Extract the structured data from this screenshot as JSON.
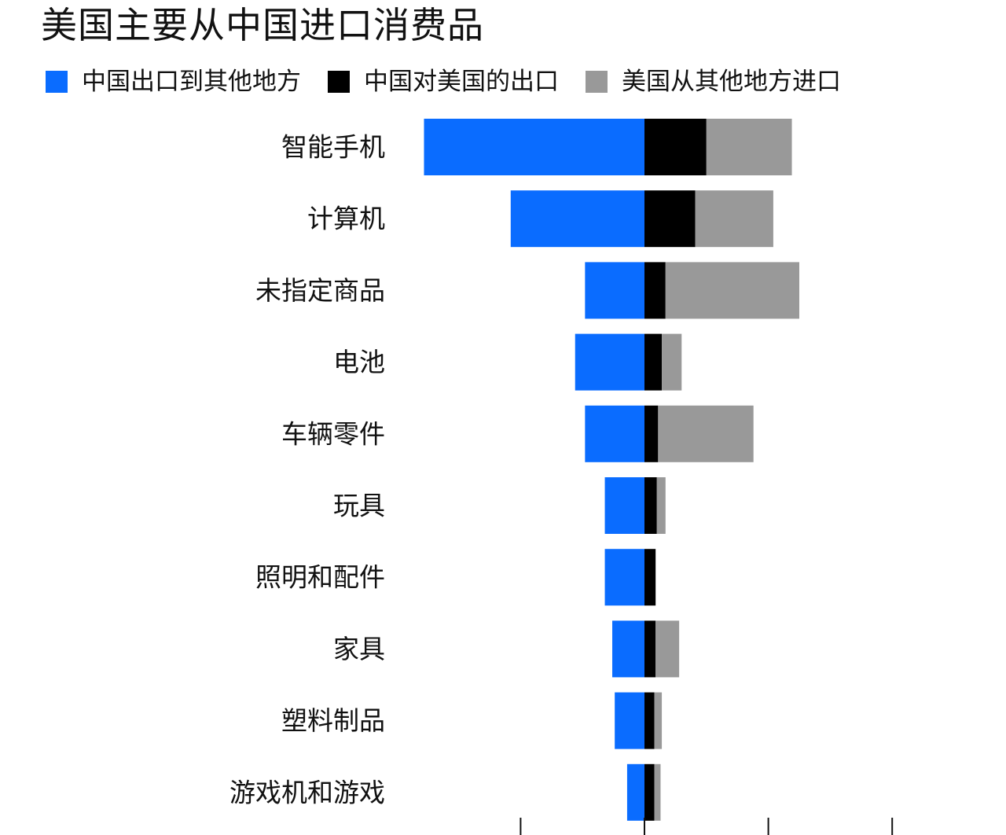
{
  "chart_data": {
    "type": "bar",
    "title": "美国主要从中国进口消费品",
    "categories": [
      "智能手机",
      "计算机",
      "未指定商品",
      "电池",
      "车辆零件",
      "玩具",
      "照明和配件",
      "家具",
      "塑料制品",
      "游戏机和游戏"
    ],
    "series": [
      {
        "name": "中国出口到其他地方",
        "color": "#0a6cff",
        "direction": "left",
        "values": [
          178,
          108,
          48,
          56,
          48,
          32,
          32,
          26,
          24,
          14
        ]
      },
      {
        "name": "中国对美国的出口",
        "color": "#000000",
        "direction": "right",
        "values": [
          50,
          41,
          17,
          14,
          11,
          10,
          9,
          9,
          8,
          8
        ]
      },
      {
        "name": "美国从其他地方进口",
        "color": "#999999",
        "direction": "right",
        "values": [
          69,
          63,
          108,
          16,
          77,
          7,
          0,
          19,
          6,
          5
        ]
      }
    ],
    "xlim": [
      -100,
      250
    ],
    "ticks": [
      -100,
      0,
      100,
      200
    ],
    "tick_labels_visible": false,
    "xlabel": "",
    "ylabel": "",
    "grid": false,
    "legend_position": "top-left"
  }
}
